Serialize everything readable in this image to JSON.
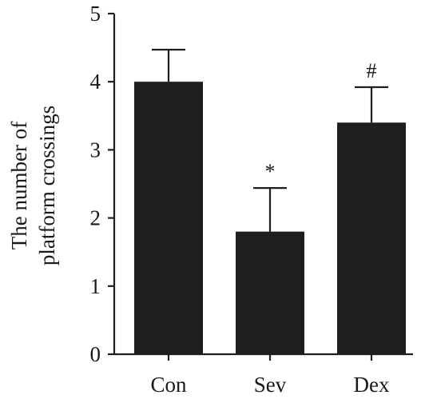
{
  "chart_data": {
    "type": "bar",
    "categories": [
      "Con",
      "Sev",
      "Dex"
    ],
    "values": [
      4.0,
      1.8,
      3.4
    ],
    "error_upper": [
      4.47,
      2.44,
      3.92
    ],
    "annotations": [
      "",
      "*",
      "#"
    ],
    "ylabel_lines": [
      "The number of",
      "platform crossings"
    ],
    "xlabel": "",
    "title": "",
    "ylim": [
      0,
      5
    ],
    "yticks": [
      "0",
      "1",
      "2",
      "3",
      "4",
      "5"
    ],
    "grid": false,
    "legend": "none",
    "bar_color": "#1e1e1e",
    "axis_color": "#1e1e1e"
  }
}
